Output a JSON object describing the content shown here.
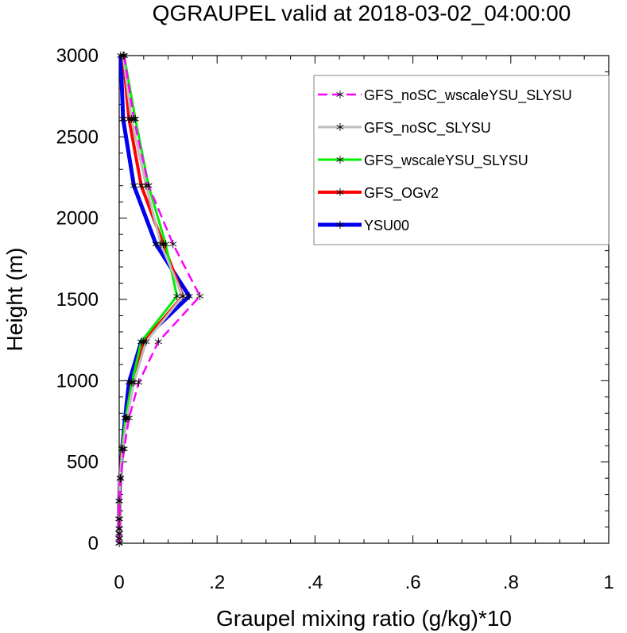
{
  "chart_data": {
    "type": "line",
    "title": "QGRAUPEL valid at 2018-03-02_04:00:00",
    "xlabel": "Graupel mixing ratio (g/kg)*10",
    "ylabel": "Height (m)",
    "xlim": [
      0,
      1
    ],
    "ylim": [
      0,
      3000
    ],
    "xticks": [
      0,
      0.2,
      0.4,
      0.6,
      0.8,
      1
    ],
    "xtick_labels": [
      "0",
      ".2",
      ".4",
      ".6",
      ".8",
      "1"
    ],
    "yticks": [
      0,
      500,
      1000,
      1500,
      2000,
      2500,
      3000
    ],
    "ytick_labels": [
      "0",
      "500",
      "1000",
      "1500",
      "2000",
      "2500",
      "3000"
    ],
    "grid": false,
    "legend_position": "top-right",
    "heights": [
      0,
      30,
      60,
      90,
      150,
      260,
      400,
      580,
      770,
      990,
      1240,
      1520,
      1840,
      2200,
      2610,
      3000
    ],
    "series": [
      {
        "name": "GFS_noSC_wscaleYSU_SLYSU",
        "color": "#ff00ff",
        "dash": true,
        "values": [
          0,
          0,
          0,
          0,
          0,
          0,
          0.003,
          0.01,
          0.02,
          0.04,
          0.08,
          0.165,
          0.11,
          0.06,
          0.03,
          0.01
        ]
      },
      {
        "name": "GFS_noSC_SLYSU",
        "color": "#bdbdbd",
        "dash": false,
        "values": [
          0,
          0,
          0,
          0,
          0,
          0,
          0.002,
          0.007,
          0.016,
          0.03,
          0.055,
          0.13,
          0.085,
          0.055,
          0.025,
          0.008
        ]
      },
      {
        "name": "GFS_wscaleYSU_SLYSU",
        "color": "#00ee00",
        "dash": false,
        "values": [
          0,
          0,
          0,
          0,
          0,
          0,
          0.002,
          0.006,
          0.013,
          0.026,
          0.045,
          0.118,
          0.095,
          0.06,
          0.033,
          0.01
        ]
      },
      {
        "name": "GFS_OGv2",
        "color": "#ff0000",
        "dash": false,
        "values": [
          0,
          0,
          0,
          0,
          0,
          0,
          0.002,
          0.006,
          0.014,
          0.026,
          0.05,
          0.13,
          0.09,
          0.045,
          0.02,
          0.008
        ]
      },
      {
        "name": "YSU00",
        "color": "#0000ee",
        "dash": false,
        "values": [
          0,
          0,
          0,
          0,
          0,
          0,
          0.002,
          0.006,
          0.012,
          0.02,
          0.045,
          0.143,
          0.075,
          0.03,
          0.008,
          0.003
        ]
      }
    ]
  }
}
